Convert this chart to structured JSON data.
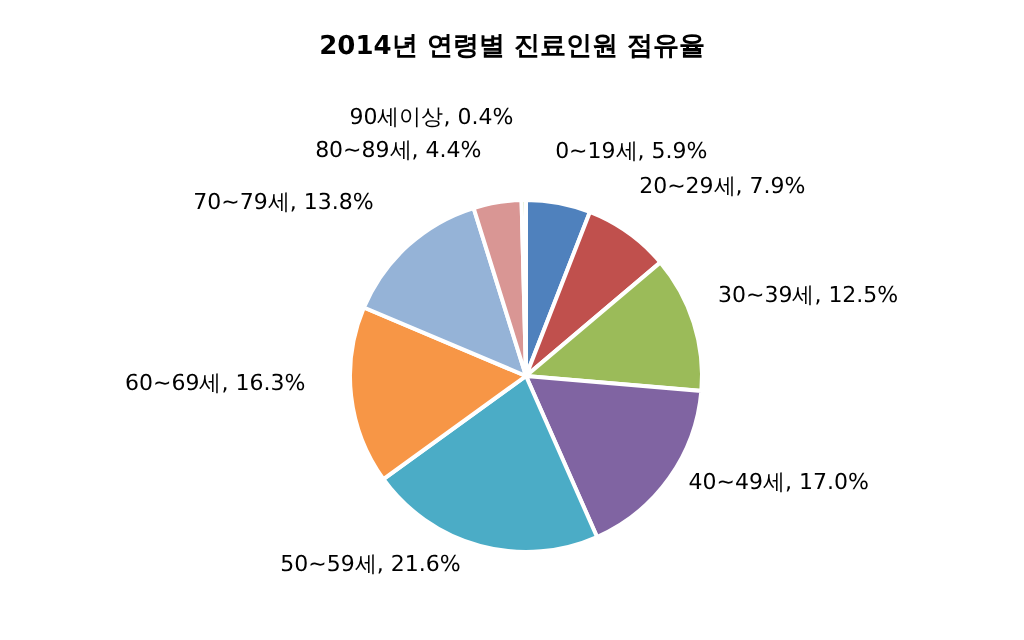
{
  "chart_data": {
    "type": "pie",
    "title": "2014년 연령별 진료인원 점유율",
    "categories": [
      "0~19세",
      "20~29세",
      "30~39세",
      "40~49세",
      "50~59세",
      "60~69세",
      "70~79세",
      "80~89세",
      "90세이상"
    ],
    "values": [
      5.9,
      7.9,
      12.5,
      17.0,
      21.6,
      16.3,
      13.8,
      4.4,
      0.4
    ],
    "value_labels": [
      "5.9%",
      "7.9%",
      "12.5%",
      "17.0%",
      "21.6%",
      "16.3%",
      "13.8%",
      "4.4%",
      "0.4%"
    ],
    "colors": [
      "#4f81bd",
      "#c0504d",
      "#9bbb59",
      "#8064a2",
      "#4bacc6",
      "#f79646",
      "#95b3d7",
      "#d99694",
      "#c3d69b"
    ],
    "legend": false
  }
}
